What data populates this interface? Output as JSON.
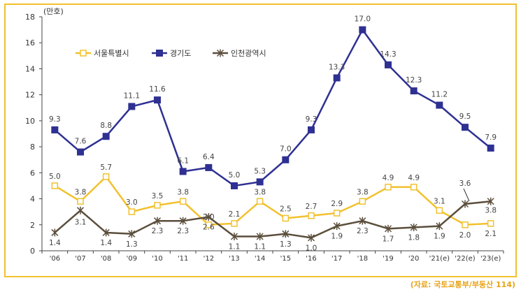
{
  "chart_data": {
    "type": "line",
    "title": "",
    "unit_label": "(만호)",
    "ylim": [
      0,
      18
    ],
    "yticks": [
      0,
      2,
      4,
      6,
      8,
      10,
      12,
      14,
      16,
      18
    ],
    "grid": false,
    "legend_position": "top-left",
    "categories": [
      "'06",
      "'07",
      "'08",
      "'09",
      "'10",
      "'11",
      "'12",
      "'13",
      "'14",
      "'15",
      "'16",
      "'17",
      "'18",
      "'19",
      "'20",
      "'21(e)",
      "'22(e)",
      "'23(e)"
    ],
    "series": [
      {
        "name": "서울특별시",
        "color": "#F2C12E",
        "marker": "open-square",
        "values": [
          5.0,
          3.8,
          5.7,
          3.0,
          3.5,
          3.8,
          2.0,
          2.1,
          3.8,
          2.5,
          2.7,
          2.9,
          3.8,
          4.9,
          4.9,
          3.1,
          2.0,
          2.1
        ],
        "labels": [
          "5.0",
          "3.8",
          "5.7",
          "3.0",
          "3.5",
          "3.8",
          "2.0",
          "2.1",
          "3.8",
          "2.5",
          "2.7",
          "2.9",
          "3.8",
          "4.9",
          "4.9",
          "3.1",
          "2.0",
          "2.1"
        ]
      },
      {
        "name": "경기도",
        "color": "#2E3092",
        "marker": "filled-square",
        "values": [
          9.3,
          7.6,
          8.8,
          11.1,
          11.6,
          6.1,
          6.4,
          5.0,
          5.3,
          7.0,
          9.3,
          13.3,
          17.0,
          14.3,
          12.3,
          11.2,
          9.5,
          7.9
        ],
        "labels": [
          "9.3",
          "7.6",
          "8.8",
          "11.1",
          "11.6",
          "6.1",
          "6.4",
          "5.0",
          "5.3",
          "7.0",
          "9.3",
          "13.3",
          "17.0",
          "14.3",
          "12.3",
          "11.2",
          "9.5",
          "7.9"
        ]
      },
      {
        "name": "인천광역시",
        "color": "#5B4E3C",
        "marker": "star",
        "values": [
          1.4,
          3.1,
          1.4,
          1.3,
          2.3,
          2.3,
          2.6,
          1.1,
          1.1,
          1.3,
          1.0,
          1.9,
          2.3,
          1.7,
          1.8,
          1.9,
          3.6,
          3.8
        ],
        "labels": [
          "1.4",
          "3.1",
          "1.4",
          "1.3",
          "2.3",
          "2.3",
          "2.6",
          "1.1",
          "1.1",
          "1.3",
          "1.0",
          "1.9",
          "2.3",
          "1.7",
          "1.8",
          "1.9",
          "3.6",
          "3.8"
        ]
      }
    ]
  },
  "source_text": "(자료: 국토교통부/부동산 114)"
}
